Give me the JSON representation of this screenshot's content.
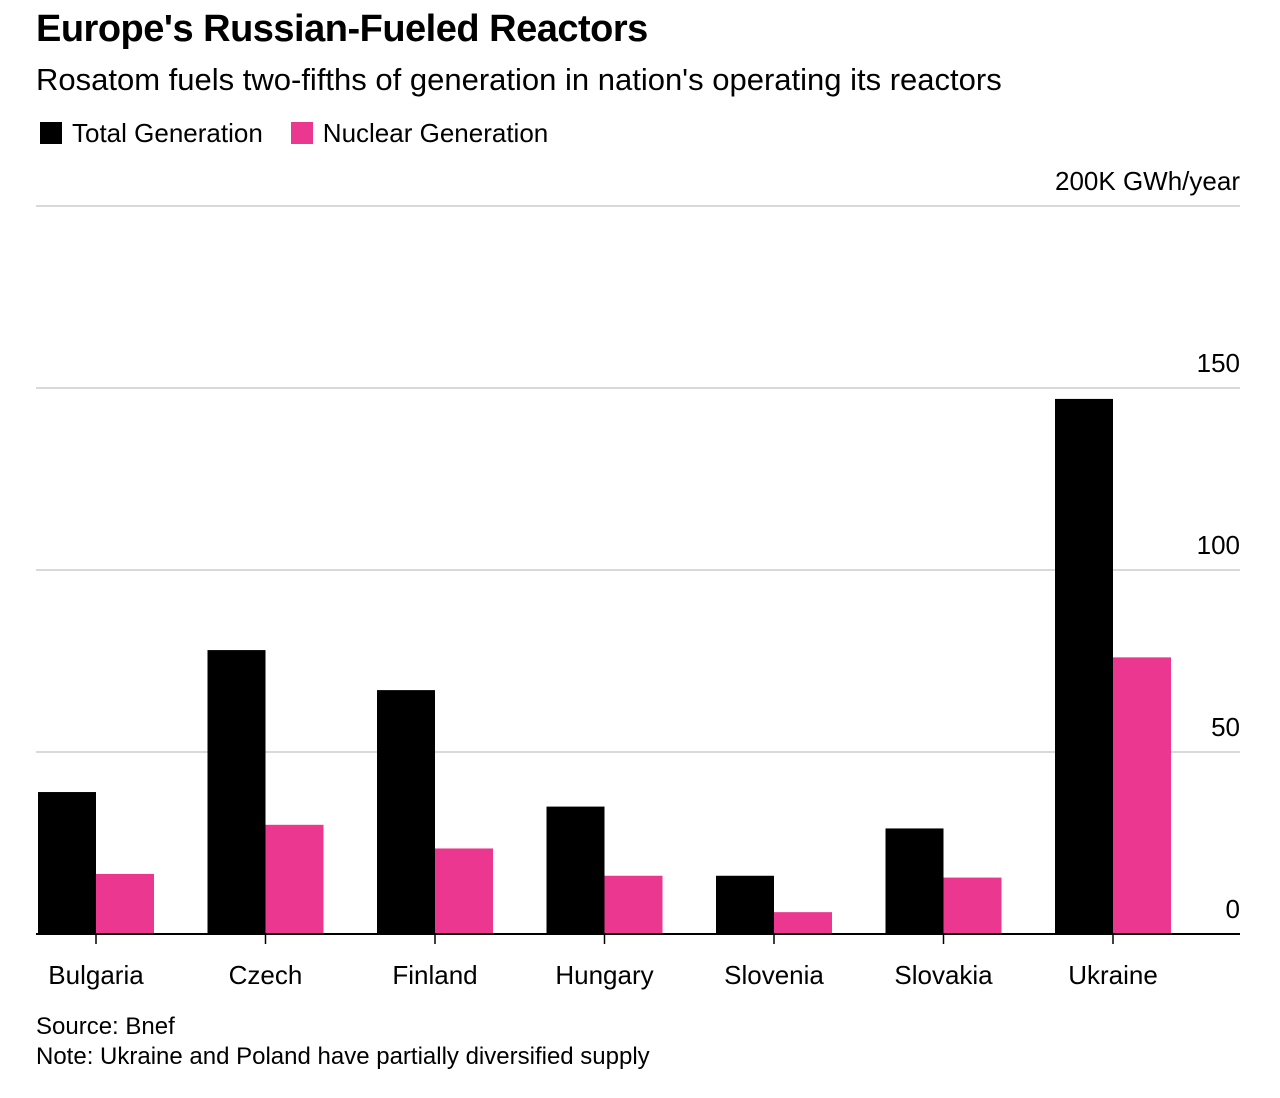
{
  "chart_data": {
    "type": "bar",
    "title": "Europe's Russian-Fueled Reactors",
    "subtitle": "Rosatom fuels two-fifths of generation in nation's operating its reactors",
    "categories": [
      "Bulgaria",
      "Czech",
      "Finland",
      "Hungary",
      "Slovenia",
      "Slovakia",
      "Ukraine"
    ],
    "series": [
      {
        "name": "Total Generation",
        "color": "#000000",
        "values": [
          39,
          78,
          67,
          35,
          16,
          29,
          147
        ]
      },
      {
        "name": "Nuclear Generation",
        "color": "#EC3790",
        "values": [
          16.5,
          30,
          23.5,
          16,
          6,
          15.5,
          76
        ]
      }
    ],
    "unit_label": "200K GWh/year",
    "y_ticks": [
      {
        "value": 0,
        "label": "0"
      },
      {
        "value": 50,
        "label": "50"
      },
      {
        "value": 100,
        "label": "100"
      },
      {
        "value": 150,
        "label": "150"
      },
      {
        "value": 200,
        "label": "200K GWh/year"
      }
    ],
    "ylim": [
      0,
      200
    ],
    "grid": true,
    "y_axis_side": "right",
    "legend_position": "top-left"
  },
  "footer": {
    "source": "Source: Bnef",
    "note": "Note: Ukraine and Poland have partially diversified supply"
  }
}
